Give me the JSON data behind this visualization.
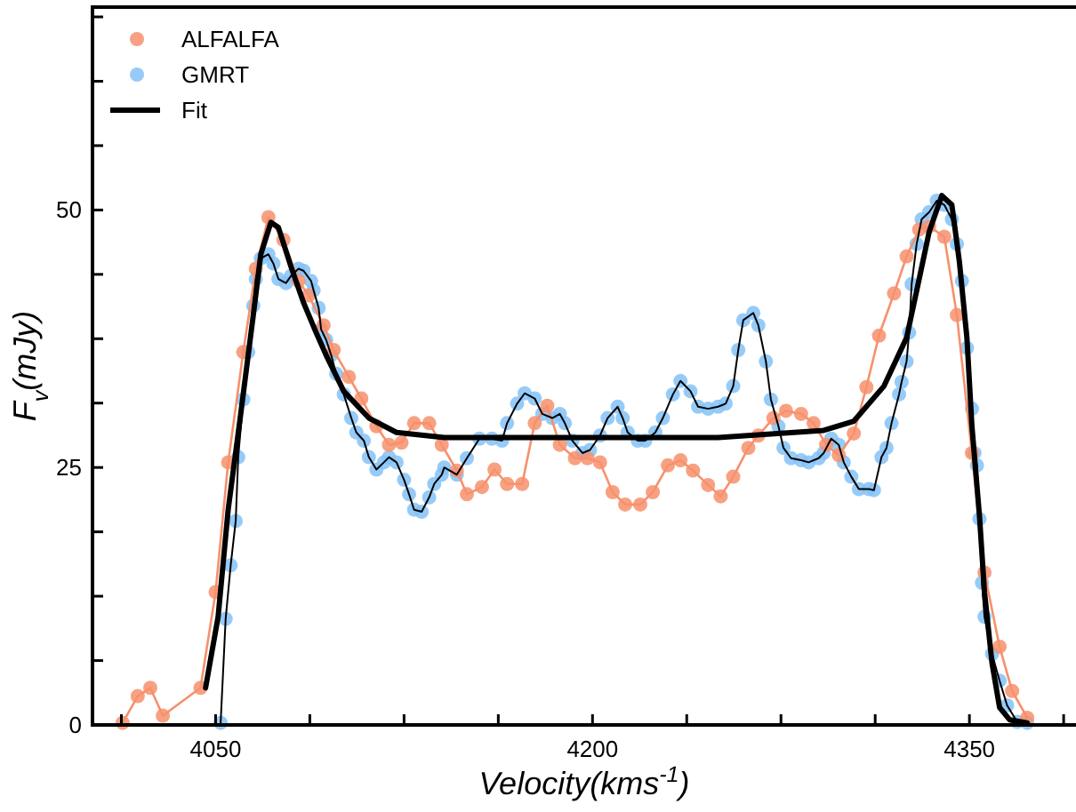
{
  "chart_data": {
    "type": "line",
    "xlabel": "Velocity(kms$^{-1}$)",
    "ylabel": "F$_{v}$(mJy)",
    "xlim": [
      4001,
      4391
    ],
    "ylim": [
      0,
      69.7
    ],
    "xticks": [
      {
        "value": 4012.5,
        "label": null
      },
      4050,
      {
        "value": 4087.5,
        "label": null
      },
      {
        "value": 4125,
        "label": null
      },
      {
        "value": 4162.5,
        "label": null
      },
      4200,
      {
        "value": 4237.5,
        "label": null
      },
      {
        "value": 4275,
        "label": null
      },
      {
        "value": 4312.5,
        "label": null
      },
      4350,
      {
        "value": 4387.5,
        "label": null
      }
    ],
    "yticks": [
      0,
      {
        "value": 6.25,
        "label": null
      },
      {
        "value": 12.5,
        "label": null
      },
      {
        "value": 18.75,
        "label": null
      },
      25,
      {
        "value": 31.25,
        "label": null
      },
      {
        "value": 37.5,
        "label": null
      },
      {
        "value": 43.75,
        "label": null
      },
      50,
      {
        "value": 56.25,
        "label": null
      },
      {
        "value": 62.5,
        "label": null
      },
      {
        "value": 68.75,
        "label": null
      }
    ],
    "grid": false,
    "legend": "top left",
    "series": [
      {
        "name": "ALFALFA",
        "marker": "circle",
        "color": "#f7906c",
        "x": [
          4013,
          4019,
          4024,
          4029,
          4044,
          4050,
          4055,
          4061,
          4066,
          4071,
          4077,
          4083,
          4087,
          4093,
          4097,
          4103,
          4108,
          4114,
          4119,
          4124,
          4129,
          4135,
          4140,
          4146,
          4150,
          4156,
          4161,
          4166,
          4172,
          4177,
          4182,
          4187,
          4193,
          4198,
          4203,
          4208,
          4213,
          4219,
          4224,
          4230,
          4235,
          4240,
          4246,
          4251,
          4256,
          4262,
          4266,
          4272,
          4277,
          4283,
          4288,
          4293,
          4298,
          4304,
          4309,
          4314,
          4320,
          4325,
          4330,
          4334,
          4340,
          4345,
          4351,
          4356,
          4362,
          4367,
          4373
        ],
        "values": [
          0.2,
          2.8,
          3.6,
          0.9,
          3.6,
          12.9,
          25.5,
          36.2,
          44.3,
          49.3,
          47.1,
          43.1,
          41.7,
          38.8,
          36.4,
          33.8,
          31.7,
          29.0,
          27.2,
          27.4,
          29.3,
          29.3,
          27.2,
          24.7,
          22.4,
          23.1,
          24.8,
          23.4,
          23.4,
          29.3,
          31.0,
          27.2,
          25.9,
          25.9,
          25.5,
          22.6,
          21.4,
          21.4,
          22.6,
          25.2,
          25.7,
          24.7,
          23.3,
          22.2,
          24.1,
          26.9,
          28.1,
          29.8,
          30.5,
          30.2,
          29.3,
          27.2,
          26.2,
          28.3,
          32.8,
          37.8,
          41.9,
          45.5,
          48.1,
          48.4,
          47.4,
          39.8,
          26.4,
          14.8,
          7.6,
          3.3,
          0.7
        ]
      },
      {
        "name": "GMRT",
        "type": "scatter",
        "marker": "circle",
        "color": "#84c2f7",
        "x": [
          4052,
          4054,
          4056,
          4058,
          4059,
          4061,
          4063,
          4065,
          4066,
          4068,
          4071,
          4073,
          4075,
          4078,
          4080,
          4083,
          4085,
          4088,
          4089,
          4091,
          4092,
          4094,
          4096,
          4098,
          4101,
          4104,
          4106,
          4109,
          4111,
          4114,
          4117,
          4119,
          4122,
          4125,
          4127,
          4129,
          4132,
          4135,
          4137,
          4140,
          4141,
          4146,
          4150,
          4155,
          4160,
          4164,
          4166,
          4170,
          4173,
          4177,
          4180,
          4184,
          4187,
          4189,
          4192,
          4196,
          4199,
          4203,
          4206,
          4210,
          4212,
          4214,
          4218,
          4221,
          4225,
          4228,
          4232,
          4235,
          4239,
          4242,
          4246,
          4250,
          4253,
          4256,
          4258,
          4260,
          4264,
          4266,
          4269,
          4271,
          4274,
          4276,
          4279,
          4283,
          4286,
          4290,
          4292,
          4295,
          4298,
          4300,
          4303,
          4306,
          4310,
          4312,
          4315,
          4317,
          4319,
          4322,
          4323,
          4325,
          4326,
          4327,
          4329,
          4331,
          4334,
          4337,
          4340,
          4343,
          4345,
          4347,
          4349,
          4351,
          4352,
          4353,
          4354,
          4355,
          4356,
          4359,
          4362,
          4365,
          4369,
          4373
        ],
        "values": [
          0.2,
          10.3,
          15.5,
          19.8,
          26.0,
          31.6,
          36.2,
          40.7,
          43.3,
          45.3,
          45.7,
          44.8,
          43.3,
          42.9,
          43.6,
          44.3,
          44.1,
          43.1,
          42.2,
          40.5,
          38.4,
          37.4,
          35.9,
          34.1,
          32.1,
          29.8,
          28.4,
          27.6,
          26.0,
          24.8,
          25.5,
          26.0,
          25.5,
          23.8,
          22.4,
          20.9,
          20.7,
          22.1,
          23.4,
          24.3,
          25.0,
          24.3,
          25.9,
          27.8,
          27.8,
          27.6,
          29.3,
          31.2,
          32.2,
          31.7,
          30.2,
          29.8,
          30.2,
          29.3,
          27.6,
          26.4,
          26.7,
          28.1,
          29.8,
          30.9,
          29.8,
          28.4,
          27.6,
          27.6,
          28.4,
          29.8,
          32.1,
          33.4,
          32.4,
          30.9,
          30.7,
          30.9,
          31.2,
          32.9,
          36.4,
          39.3,
          40.0,
          38.8,
          35.3,
          31.6,
          29.0,
          26.9,
          25.9,
          25.7,
          25.5,
          25.9,
          26.4,
          27.8,
          27.2,
          25.5,
          24.1,
          22.9,
          22.9,
          22.8,
          26.0,
          26.9,
          29.3,
          32.1,
          33.3,
          35.3,
          38.1,
          42.8,
          46.7,
          49.1,
          49.8,
          50.9,
          50.5,
          49.1,
          46.7,
          43.1,
          36.6,
          30.7,
          26.4,
          25.2,
          20.0,
          13.8,
          10.5,
          6.9,
          4.3,
          1.9,
          0.3,
          0.2
        ]
      },
      {
        "marker": "none",
        "color": "#000000",
        "x": [
          4052,
          4054,
          4056,
          4058,
          4059,
          4061,
          4063,
          4065,
          4066,
          4068,
          4071,
          4073,
          4075,
          4078,
          4080,
          4083,
          4085,
          4088,
          4089,
          4091,
          4092,
          4094,
          4096,
          4098,
          4101,
          4104,
          4106,
          4109,
          4111,
          4114,
          4117,
          4119,
          4122,
          4125,
          4127,
          4129,
          4132,
          4135,
          4137,
          4140,
          4141,
          4146,
          4150,
          4155,
          4160,
          4164,
          4166,
          4170,
          4173,
          4177,
          4180,
          4184,
          4187,
          4189,
          4192,
          4196,
          4199,
          4203,
          4206,
          4210,
          4212,
          4214,
          4218,
          4221,
          4225,
          4228,
          4232,
          4235,
          4239,
          4242,
          4246,
          4250,
          4253,
          4256,
          4258,
          4260,
          4264,
          4266,
          4269,
          4271,
          4274,
          4276,
          4279,
          4283,
          4286,
          4290,
          4292,
          4295,
          4298,
          4300,
          4303,
          4306,
          4310,
          4312,
          4315,
          4317,
          4319,
          4322,
          4323,
          4325,
          4326,
          4327,
          4329,
          4331,
          4334,
          4337,
          4340,
          4343,
          4345,
          4347,
          4349,
          4351,
          4352,
          4353,
          4354,
          4355,
          4356,
          4359,
          4362,
          4365,
          4369,
          4373
        ],
        "values": [
          0.2,
          10.3,
          15.5,
          19.8,
          26.0,
          31.6,
          36.2,
          40.7,
          43.3,
          45.3,
          45.7,
          44.8,
          43.3,
          42.9,
          43.6,
          44.3,
          44.1,
          43.1,
          42.2,
          40.5,
          38.4,
          37.4,
          35.9,
          34.1,
          32.1,
          29.8,
          28.4,
          27.6,
          26.0,
          24.8,
          25.5,
          26.0,
          25.5,
          23.8,
          22.4,
          20.9,
          20.7,
          22.1,
          23.4,
          24.3,
          25.0,
          24.3,
          25.9,
          27.8,
          27.8,
          27.6,
          29.3,
          31.2,
          32.2,
          31.7,
          30.2,
          29.8,
          30.2,
          29.3,
          27.6,
          26.4,
          26.7,
          28.1,
          29.8,
          30.9,
          29.8,
          28.4,
          27.6,
          27.6,
          28.4,
          29.8,
          32.1,
          33.4,
          32.4,
          30.9,
          30.7,
          30.9,
          31.2,
          32.9,
          36.4,
          39.3,
          40.0,
          38.8,
          35.3,
          31.6,
          29.0,
          26.9,
          25.9,
          25.7,
          25.5,
          25.9,
          26.4,
          27.8,
          27.2,
          25.5,
          24.1,
          22.9,
          22.9,
          22.8,
          26.0,
          26.9,
          29.3,
          32.1,
          33.3,
          35.3,
          38.1,
          42.8,
          46.7,
          49.1,
          49.8,
          50.9,
          50.5,
          49.1,
          46.7,
          43.1,
          36.6,
          30.7,
          26.4,
          25.2,
          20.0,
          13.8,
          10.5,
          6.9,
          4.3,
          1.9,
          0.3,
          0.2
        ]
      },
      {
        "name": "Fit",
        "marker": "none",
        "color": "#000000",
        "x": [
          4046,
          4051,
          4055,
          4060,
          4065,
          4068,
          4072,
          4075,
          4080,
          4085,
          4090,
          4094,
          4101,
          4111,
          4122,
          4141,
          4200,
          4250,
          4292,
          4304,
          4316,
          4325,
          4330,
          4334,
          4339,
          4343,
          4346,
          4349,
          4351,
          4354,
          4356,
          4359,
          4362,
          4366,
          4373
        ],
        "values": [
          3.6,
          10.5,
          20.9,
          30.2,
          39.8,
          45.7,
          48.8,
          48.3,
          44.5,
          41.0,
          38.1,
          35.9,
          32.4,
          29.8,
          28.4,
          27.9,
          27.9,
          27.9,
          28.6,
          29.5,
          32.9,
          37.6,
          43.3,
          47.9,
          51.4,
          50.5,
          45.0,
          37.6,
          29.0,
          20.3,
          12.9,
          6.0,
          1.7,
          0.5,
          0.2
        ]
      }
    ]
  }
}
